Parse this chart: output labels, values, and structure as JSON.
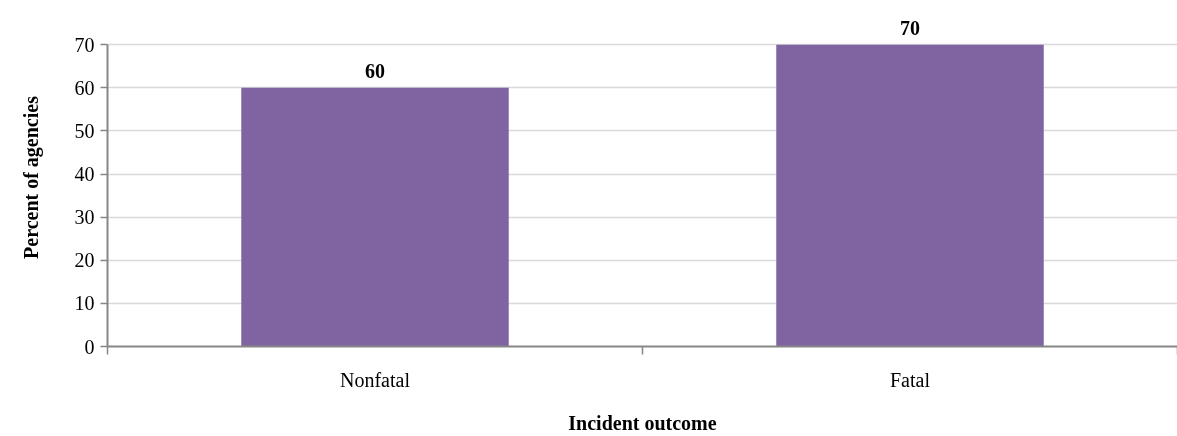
{
  "chart_data": {
    "type": "bar",
    "categories": [
      "Nonfatal",
      "Fatal"
    ],
    "values": [
      60,
      70
    ],
    "color": "#8064a2",
    "xlabel": "Incident outcome",
    "ylabel": "Percent of agencies",
    "ylim": [
      0,
      70
    ],
    "yticks": [
      0,
      10,
      20,
      30,
      40,
      50,
      60,
      70
    ],
    "grid": "y",
    "data_labels": true
  }
}
